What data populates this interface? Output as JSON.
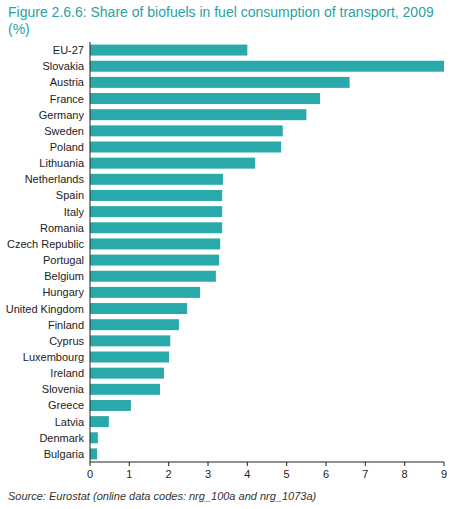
{
  "chart_data": {
    "type": "bar",
    "orientation": "horizontal",
    "title": "Figure 2.6.6: Share of biofuels in fuel consumption of transport, 2009 (%)",
    "source": "Source: Eurostat (online data codes: nrg_100a and nrg_1073a)",
    "categories": [
      "EU-27",
      "Slovakia",
      "Austria",
      "France",
      "Germany",
      "Sweden",
      "Poland",
      "Lithuania",
      "Netherlands",
      "Spain",
      "Italy",
      "Romania",
      "Czech Republic",
      "Portugal",
      "Belgium",
      "Hungary",
      "United Kingdom",
      "Finland",
      "Cyprus",
      "Luxembourg",
      "Ireland",
      "Slovenia",
      "Greece",
      "Latvia",
      "Denmark",
      "Bulgaria"
    ],
    "values": [
      4.0,
      9.0,
      6.6,
      5.85,
      5.5,
      4.9,
      4.86,
      4.2,
      3.38,
      3.36,
      3.36,
      3.36,
      3.31,
      3.28,
      3.2,
      2.8,
      2.47,
      2.26,
      2.04,
      2.01,
      1.88,
      1.78,
      1.04,
      0.48,
      0.2,
      0.18
    ],
    "color": "#2aa9aa",
    "xlim": [
      0,
      9
    ],
    "xticks": [
      0,
      1,
      2,
      3,
      4,
      5,
      6,
      7,
      8,
      9
    ],
    "grid": false
  }
}
